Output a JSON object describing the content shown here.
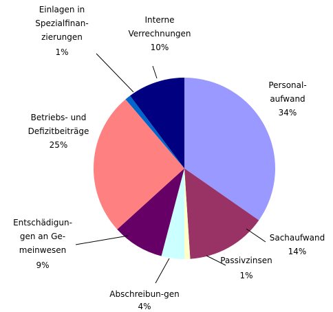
{
  "chart_data": {
    "type": "pie",
    "categories": [
      "Personal-\naufwand",
      "Sachaufwand",
      "Passivzinsen",
      "Abschreibun-gen",
      "Entschädigun-\ngen an Ge-\nmeinwesen",
      "Betriebs- und\nDefizitbeiträge",
      "Einlagen in\nSpezialfinan-\nzierungen",
      "Interne\nVerrechnungen"
    ],
    "values": [
      34,
      14,
      1,
      4,
      9,
      25,
      1,
      10
    ],
    "value_labels": [
      "34%",
      "14%",
      "1%",
      "4%",
      "9%",
      "25%",
      "1%",
      "10%"
    ],
    "colors": [
      "#9999ff",
      "#993366",
      "#ffffcc",
      "#ccffff",
      "#660066",
      "#ff8080",
      "#0066cc",
      "#000080"
    ]
  }
}
